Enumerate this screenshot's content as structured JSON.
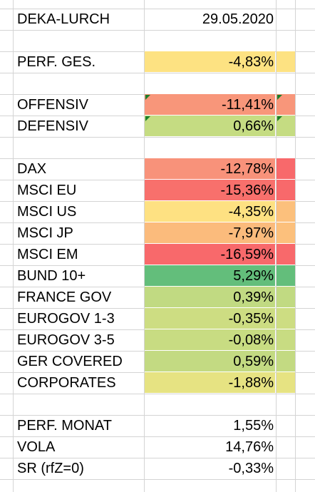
{
  "header": {
    "name": "DEKA-LURCH",
    "date": "29.05.2020"
  },
  "perf_total": {
    "label": "PERF. GES.",
    "value": "-4,83%",
    "color": "#fde282"
  },
  "strategy": [
    {
      "label": "OFFENSIV",
      "value": "-11,41%",
      "color": "#f8967a",
      "ext_color": "#f8967a"
    },
    {
      "label": "DEFENSIV",
      "value": "0,66%",
      "color": "#c5dc82",
      "ext_color": "#c5dc82"
    }
  ],
  "indices": [
    {
      "label": "DAX",
      "value": "-12,78%",
      "color": "#f8927a",
      "ext_color": "#f8696b"
    },
    {
      "label": "MSCI EU",
      "value": "-15,36%",
      "color": "#f8706c",
      "ext_color": "#f8696b"
    },
    {
      "label": "MSCI US",
      "value": "-4,35%",
      "color": "#fee182",
      "ext_color": "#fcc07c"
    },
    {
      "label": "MSCI JP",
      "value": "-7,97%",
      "color": "#fbbb7c",
      "ext_color": "#fcc07c"
    },
    {
      "label": "MSCI EM",
      "value": "-16,59%",
      "color": "#f8696b",
      "ext_color": "#f8696b"
    },
    {
      "label": "BUND 10+",
      "value": "5,29%",
      "color": "#63be7b",
      "ext_color": "#63be7b"
    },
    {
      "label": "FRANCE GOV",
      "value": "0,39%",
      "color": "#c1da82",
      "ext_color": "#c1da82"
    },
    {
      "label": "EUROGOV 1-3",
      "value": "-0,35%",
      "color": "#cddd82",
      "ext_color": "#cddd82"
    },
    {
      "label": "EUROGOV 3-5",
      "value": "-0,08%",
      "color": "#c8dc82",
      "ext_color": "#c8dc82"
    },
    {
      "label": "GER COVERED",
      "value": "0,59%",
      "color": "#c3da82",
      "ext_color": "#c3da82"
    },
    {
      "label": "CORPORATES",
      "value": "-1,88%",
      "color": "#e6e382",
      "ext_color": "#e6e382"
    }
  ],
  "stats": [
    {
      "label": "PERF. MONAT",
      "value": "1,55%"
    },
    {
      "label": "VOLA",
      "value": "14,76%"
    },
    {
      "label": "SR (rfZ=0)",
      "value": "-0,33%"
    }
  ]
}
